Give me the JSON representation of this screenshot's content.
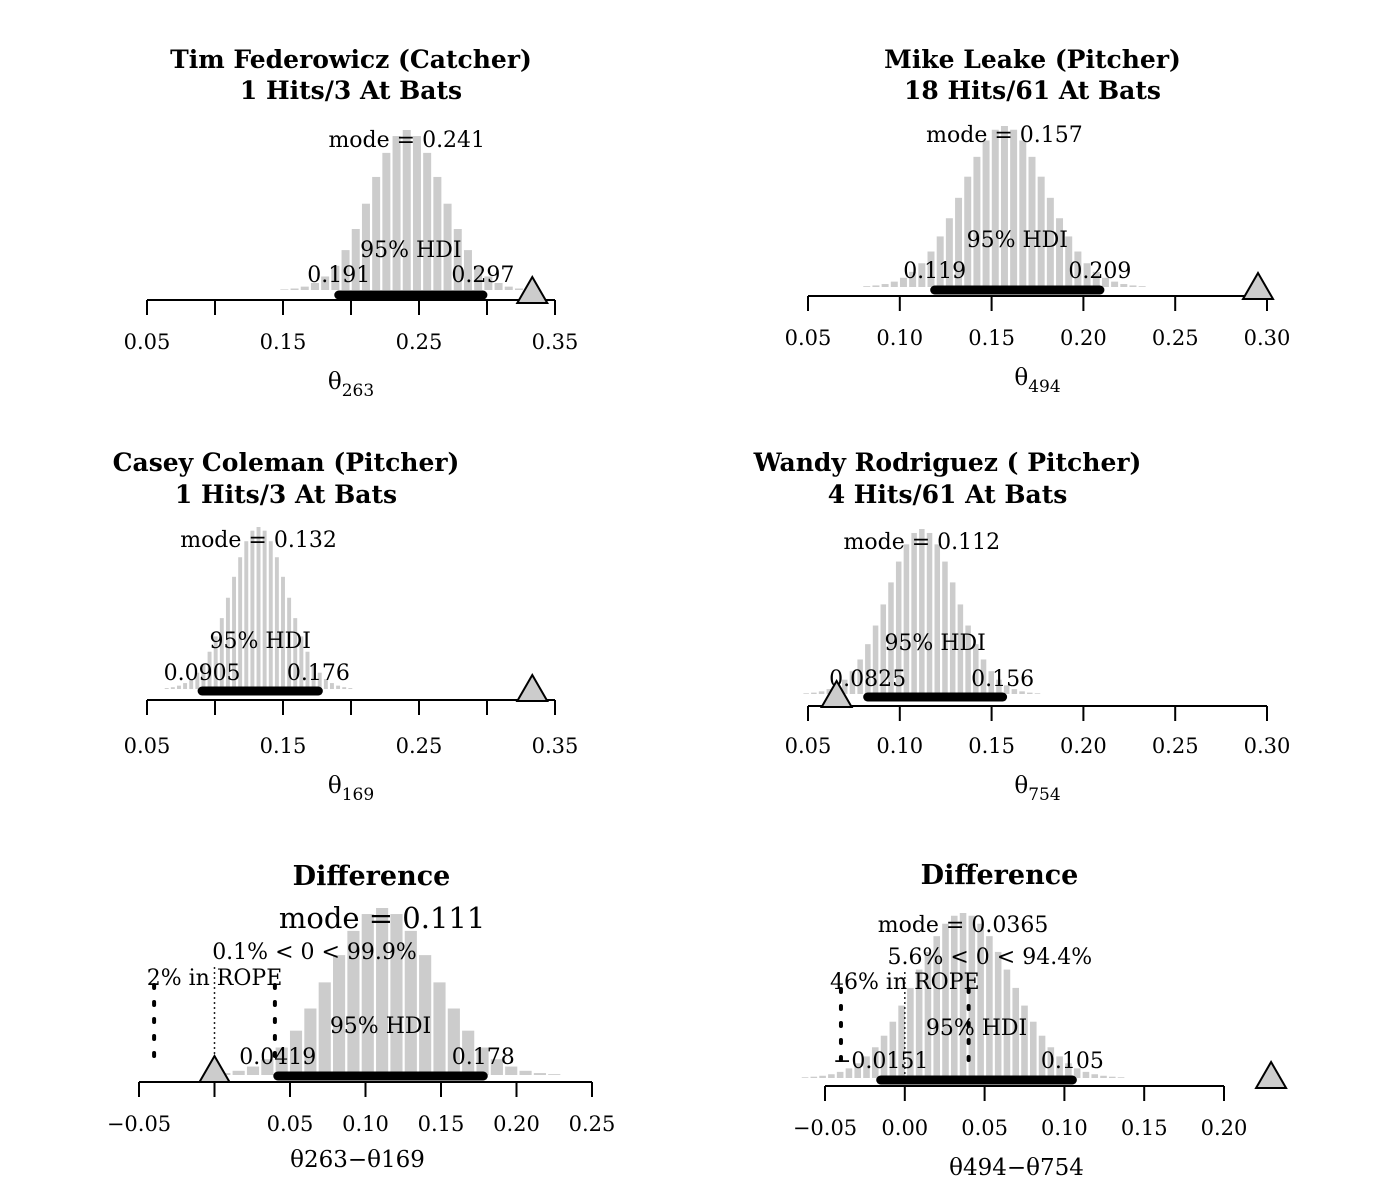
{
  "chart_data": [
    {
      "type": "bar",
      "panel": "top-left",
      "title": [
        "Tim Federowicz (Catcher)",
        "1 Hits/3 At Bats"
      ],
      "xlabel_sym": "θ",
      "xlabel_sub": "263",
      "xlim": [
        0.05,
        0.35
      ],
      "xticks": [
        0.05,
        0.1,
        0.15,
        0.2,
        0.25,
        0.3,
        0.35
      ],
      "xtick_labels": [
        "0.05",
        "",
        "0.15",
        "",
        "0.25",
        "",
        "0.35"
      ],
      "bin_width": 0.0075,
      "dist": {
        "mode": 0.241,
        "sd": 0.027
      },
      "mode_label": "mode = 0.241",
      "hdi": {
        "label": "95% HDI",
        "low": 0.191,
        "high": 0.297,
        "low_label": "0.191",
        "high_label": "0.297"
      },
      "comparison_value": 0.3333
    },
    {
      "type": "bar",
      "panel": "top-right",
      "title": [
        "Mike Leake (Pitcher)",
        "18 Hits/61 At Bats"
      ],
      "xlabel_sym": "θ",
      "xlabel_sub": "494",
      "xlim": [
        0.05,
        0.3
      ],
      "xticks": [
        0.05,
        0.1,
        0.15,
        0.2,
        0.25,
        0.3
      ],
      "xtick_labels": [
        "0.05",
        "0.10",
        "0.15",
        "0.20",
        "0.25",
        "0.30"
      ],
      "bin_width": 0.005,
      "dist": {
        "mode": 0.157,
        "sd": 0.023
      },
      "mode_label": "mode = 0.157",
      "hdi": {
        "label": "95% HDI",
        "low": 0.119,
        "high": 0.209,
        "low_label": "0.119",
        "high_label": "0.209"
      },
      "comparison_value": 0.2951
    },
    {
      "type": "bar",
      "panel": "middle-left",
      "title": [
        "Casey Coleman (Pitcher)",
        "1 Hits/3 At Bats"
      ],
      "xlabel_sym": "θ",
      "xlabel_sub": "169",
      "xlim": [
        0.05,
        0.35
      ],
      "xticks": [
        0.05,
        0.1,
        0.15,
        0.2,
        0.25,
        0.3,
        0.35
      ],
      "xtick_labels": [
        "0.05",
        "",
        "0.15",
        "",
        "0.25",
        "",
        "0.35"
      ],
      "bin_width": 0.0045,
      "dist": {
        "mode": 0.132,
        "sd": 0.021
      },
      "mode_label": "mode = 0.132",
      "hdi": {
        "label": "95% HDI",
        "low": 0.0905,
        "high": 0.176,
        "low_label": "0.0905",
        "high_label": "0.176"
      },
      "comparison_value": 0.3333
    },
    {
      "type": "bar",
      "panel": "middle-right",
      "title": [
        "Wandy Rodriguez ( Pitcher)",
        "4 Hits/61 At Bats"
      ],
      "xlabel_sym": "θ",
      "xlabel_sub": "754",
      "xlim": [
        0.05,
        0.3
      ],
      "xticks": [
        0.05,
        0.1,
        0.15,
        0.2,
        0.25,
        0.3
      ],
      "xtick_labels": [
        "0.05",
        "0.10",
        "0.15",
        "0.20",
        "0.25",
        "0.30"
      ],
      "bin_width": 0.0042,
      "dist": {
        "mode": 0.112,
        "sd": 0.019
      },
      "mode_label": "mode = 0.112",
      "hdi": {
        "label": "95% HDI",
        "low": 0.0825,
        "high": 0.156,
        "low_label": "0.0825",
        "high_label": "0.156"
      },
      "comparison_value": 0.0656
    },
    {
      "type": "bar",
      "panel": "bottom-left",
      "title": [
        "Difference"
      ],
      "xlabel_text": "θ263−θ169",
      "xlim": [
        -0.05,
        0.25
      ],
      "xticks": [
        -0.05,
        0.0,
        0.05,
        0.1,
        0.15,
        0.2,
        0.25
      ],
      "xtick_labels": [
        "−0.05",
        "",
        "0.05",
        "0.10",
        "0.15",
        "0.20",
        "0.25"
      ],
      "bin_width": 0.0095,
      "dist": {
        "mode": 0.111,
        "sd": 0.035
      },
      "mode_label": "mode = 0.111",
      "mode_big": true,
      "compare_label": "0.1% < 0 < 99.9%",
      "compare_value": 0,
      "rope": {
        "low": -0.04,
        "high": 0.04,
        "label": "2% in ROPE"
      },
      "hdi": {
        "label": "95% HDI",
        "low": 0.0419,
        "high": 0.178,
        "low_label": "0.0419",
        "high_label": "0.178"
      },
      "comparison_value": 0.0
    },
    {
      "type": "bar",
      "panel": "bottom-right",
      "title": [
        "Difference"
      ],
      "xlabel_text": "θ494−θ754",
      "xlim": [
        -0.05,
        0.2
      ],
      "xticks": [
        -0.05,
        0.0,
        0.05,
        0.1,
        0.15,
        0.2
      ],
      "xtick_labels": [
        "−0.05",
        "0.00",
        "0.05",
        "0.10",
        "0.15",
        "0.20"
      ],
      "bin_width": 0.0055,
      "dist": {
        "mode": 0.0365,
        "sd": 0.03
      },
      "mode_label": "mode = 0.0365",
      "compare_label": "5.6% < 0 < 94.4%",
      "compare_value": 0,
      "rope": {
        "low": -0.04,
        "high": 0.04,
        "label": "46% in ROPE"
      },
      "hdi": {
        "label": "95% HDI",
        "low": -0.0151,
        "high": 0.105,
        "low_label": "−0.0151",
        "high_label": "0.105"
      },
      "comparison_value": 0.2295
    }
  ]
}
